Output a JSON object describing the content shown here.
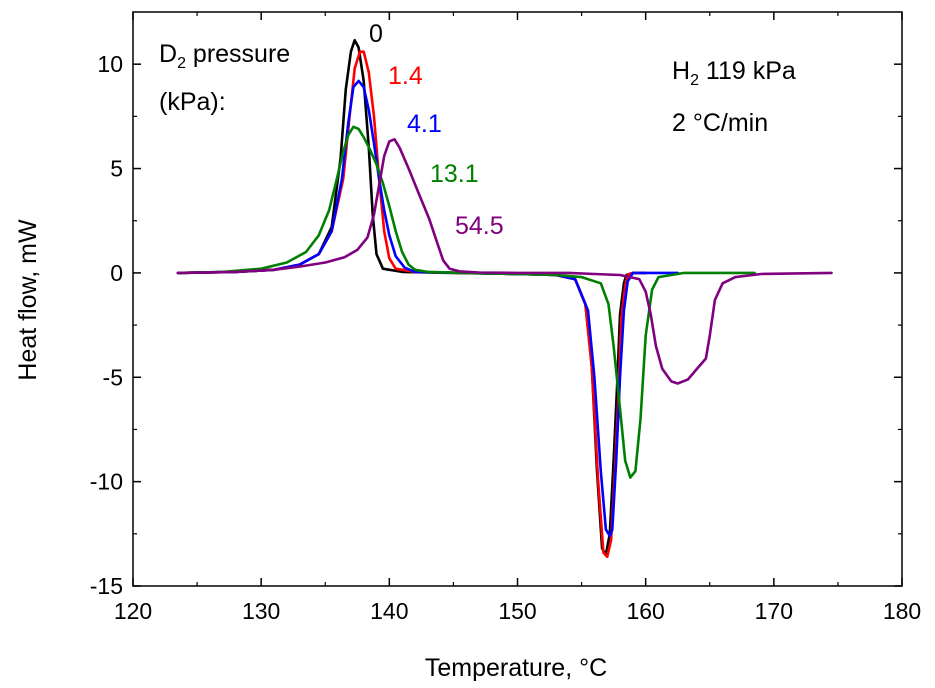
{
  "chart_data": {
    "type": "line",
    "title": "",
    "xlabel": "Temperature, °C",
    "ylabel": "Heat flow, mW",
    "xlim": [
      120,
      180
    ],
    "ylim": [
      -15,
      12.5
    ],
    "xticks": [
      120,
      130,
      140,
      150,
      160,
      170,
      180
    ],
    "yticks": [
      -15,
      -10,
      -5,
      0,
      5,
      10
    ],
    "grid": false,
    "legend": {
      "title_line1_base": "D",
      "title_line1_sub": "2",
      "title_line1_rest": " pressure",
      "title_line2": "(kPa):"
    },
    "annotations": {
      "gas_base": "H",
      "gas_sub": "2",
      "gas_rest": " 119 kPa",
      "rate": "2 °C/min"
    },
    "series": [
      {
        "name": "0",
        "color": "#000000",
        "x": [
          123.5,
          128,
          131,
          133,
          134.5,
          135.5,
          136.2,
          136.6,
          137.0,
          137.3,
          137.6,
          138.0,
          138.4,
          138.7,
          139.0,
          139.5,
          141,
          145,
          150,
          153,
          154.5,
          155.3,
          155.8,
          156.2,
          156.6,
          156.9,
          157.2,
          157.5,
          157.8,
          158.0,
          158.3,
          158.5,
          159,
          160
        ],
        "y": [
          0,
          0.05,
          0.15,
          0.4,
          0.9,
          2.2,
          5.5,
          8.8,
          10.6,
          11.15,
          10.8,
          9.2,
          6.0,
          2.8,
          0.9,
          0.2,
          0.05,
          0,
          -0.05,
          -0.1,
          -0.3,
          -1.5,
          -4.5,
          -9.5,
          -13.2,
          -13.5,
          -12.5,
          -9.0,
          -5.0,
          -2.0,
          -0.5,
          -0.1,
          0,
          0
        ]
      },
      {
        "name": "1.4",
        "color": "#ff0000",
        "x": [
          123.5,
          128,
          131,
          133,
          134.5,
          135.5,
          136.4,
          136.9,
          137.3,
          137.7,
          138.0,
          138.4,
          138.8,
          139.2,
          139.6,
          140.0,
          140.5,
          142,
          146,
          150,
          153,
          154.5,
          155.3,
          155.8,
          156.3,
          156.7,
          157.0,
          157.3,
          157.6,
          157.9,
          158.1,
          158.4,
          158.6,
          159,
          160
        ],
        "y": [
          0,
          0.05,
          0.15,
          0.4,
          0.9,
          2.0,
          4.5,
          7.5,
          9.8,
          10.6,
          10.6,
          9.6,
          7.5,
          4.5,
          2.0,
          0.7,
          0.2,
          0.05,
          0,
          -0.05,
          -0.1,
          -0.3,
          -1.5,
          -4.5,
          -10.0,
          -13.4,
          -13.6,
          -12.8,
          -9.5,
          -5.5,
          -2.2,
          -0.6,
          -0.1,
          0,
          0
        ]
      },
      {
        "name": "4.1",
        "color": "#0000ff",
        "x": [
          123.5,
          128,
          131,
          133,
          134.5,
          135.5,
          136.3,
          136.8,
          137.2,
          137.6,
          138.0,
          138.4,
          138.8,
          139.2,
          139.6,
          140.0,
          140.5,
          141.2,
          142,
          146,
          150,
          153,
          154.5,
          155.5,
          156.0,
          156.5,
          156.9,
          157.2,
          157.4,
          157.7,
          158.0,
          158.3,
          158.6,
          159,
          160,
          162.5
        ],
        "y": [
          0,
          0.05,
          0.15,
          0.4,
          0.9,
          2.0,
          4.5,
          7.2,
          8.9,
          9.2,
          8.9,
          7.8,
          6.2,
          4.5,
          3.0,
          1.8,
          0.8,
          0.25,
          0.05,
          0,
          -0.05,
          -0.1,
          -0.3,
          -1.8,
          -5.0,
          -9.5,
          -12.3,
          -12.6,
          -12.3,
          -9.0,
          -5.0,
          -1.8,
          -0.4,
          0,
          0,
          0
        ]
      },
      {
        "name": "13.1",
        "color": "#008000",
        "x": [
          123.5,
          127,
          130,
          132,
          133.5,
          134.5,
          135.3,
          135.9,
          136.4,
          136.8,
          137.2,
          137.6,
          138.0,
          138.5,
          139.0,
          139.5,
          140.0,
          140.5,
          141.0,
          141.5,
          142.0,
          143,
          146,
          150,
          153,
          155,
          156.5,
          157.1,
          157.5,
          158.0,
          158.4,
          158.8,
          159.2,
          159.6,
          160.0,
          160.5,
          161,
          163,
          168.5
        ],
        "y": [
          0,
          0.05,
          0.2,
          0.5,
          1.0,
          1.8,
          3.0,
          4.5,
          5.8,
          6.6,
          7.0,
          6.9,
          6.5,
          5.9,
          5.2,
          4.3,
          3.2,
          2.0,
          1.0,
          0.4,
          0.15,
          0.05,
          0,
          -0.05,
          -0.1,
          -0.2,
          -0.5,
          -1.5,
          -3.5,
          -6.5,
          -9.0,
          -9.8,
          -9.5,
          -7.0,
          -3.0,
          -0.8,
          -0.2,
          0,
          0
        ]
      },
      {
        "name": "54.5",
        "color": "#800080",
        "x": [
          123.5,
          128,
          131,
          133,
          135,
          136.5,
          137.5,
          138.3,
          138.8,
          139.2,
          139.6,
          140.0,
          140.4,
          140.8,
          141.5,
          142.3,
          143.1,
          143.7,
          144.2,
          144.7,
          145.5,
          147,
          150,
          154,
          156,
          158,
          159.5,
          160.0,
          160.4,
          160.8,
          161.3,
          162.0,
          162.5,
          163.3,
          164.0,
          164.7,
          165.0,
          165.4,
          166.0,
          167,
          169,
          174.5
        ],
        "y": [
          0,
          0.05,
          0.15,
          0.3,
          0.5,
          0.75,
          1.1,
          1.7,
          2.8,
          4.2,
          5.6,
          6.3,
          6.4,
          6.0,
          5.0,
          3.8,
          2.6,
          1.5,
          0.6,
          0.2,
          0.07,
          0.02,
          0,
          0,
          -0.05,
          -0.1,
          -0.3,
          -0.9,
          -2.0,
          -3.5,
          -4.6,
          -5.2,
          -5.3,
          -5.1,
          -4.6,
          -4.1,
          -3.0,
          -1.3,
          -0.5,
          -0.2,
          -0.05,
          0
        ]
      }
    ]
  }
}
